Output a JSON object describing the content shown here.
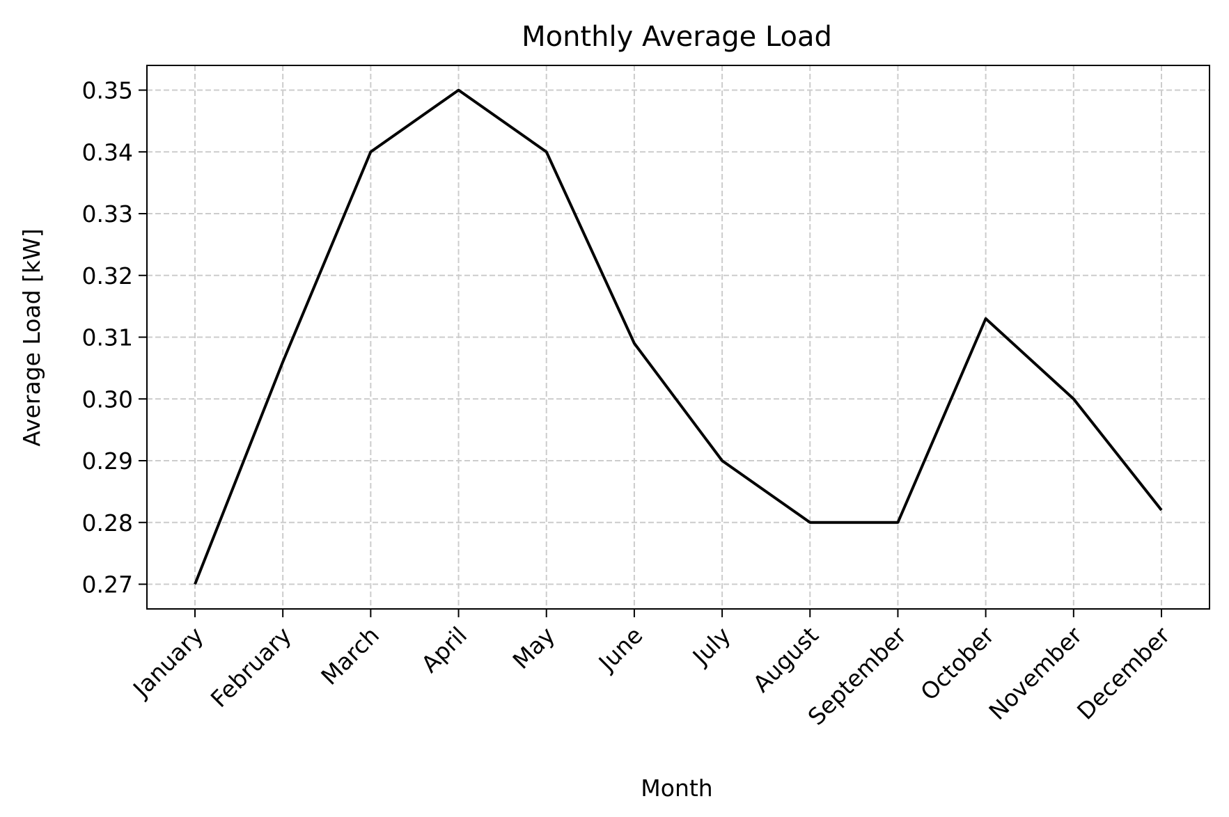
{
  "chart_data": {
    "type": "line",
    "title": "Monthly Average Load",
    "xlabel": "Month",
    "ylabel": "Average Load [kW]",
    "categories": [
      "January",
      "February",
      "March",
      "April",
      "May",
      "June",
      "July",
      "August",
      "September",
      "October",
      "November",
      "December"
    ],
    "series": [
      {
        "values": [
          0.27,
          0.306,
          0.34,
          0.35,
          0.34,
          0.309,
          0.29,
          0.28,
          0.28,
          0.313,
          0.3,
          0.282
        ],
        "color": "#000000"
      }
    ],
    "yticks": [
      "0.27",
      "0.28",
      "0.29",
      "0.30",
      "0.31",
      "0.32",
      "0.33",
      "0.34",
      "0.35"
    ],
    "ylim": [
      0.266,
      0.354
    ],
    "grid": true,
    "grid_style": "dashed",
    "colors": {
      "line": "#000000",
      "grid": "#cccccc",
      "axes": "#000000"
    }
  }
}
